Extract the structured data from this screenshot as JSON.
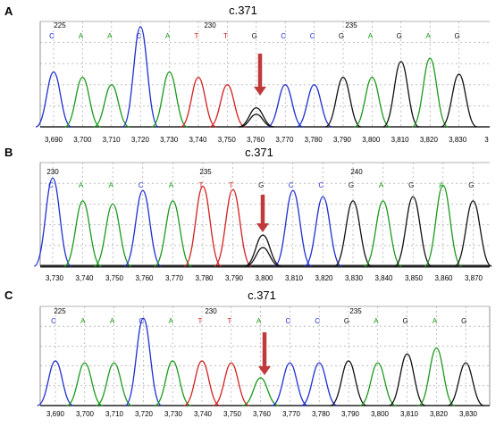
{
  "colors": {
    "A": "#1a9a1a",
    "C": "#1f2fd0",
    "G": "#111111",
    "T": "#d42020",
    "arrow": "#c0393b",
    "grid": "#9a9a9a"
  },
  "panels": [
    {
      "letter": "A",
      "title": "c.371",
      "positions": [
        "225",
        "230",
        "235"
      ],
      "bases": [
        "C",
        "A",
        "A",
        "C",
        "A",
        "T",
        "T",
        "G",
        "C",
        "C",
        "G",
        "A",
        "G",
        "A",
        "G"
      ],
      "axis": [
        "3,690",
        "3,700",
        "3,710",
        "3,720",
        "3,730",
        "3,740",
        "3,750",
        "3,760",
        "3,770",
        "3,780",
        "3,790",
        "3,800",
        "3,810",
        "3,820",
        "3,830",
        "3"
      ],
      "peak_heights": [
        0.52,
        0.47,
        0.4,
        0.95,
        0.52,
        0.47,
        0.4,
        0.18,
        0.4,
        0.4,
        0.47,
        0.47,
        0.62,
        0.65,
        0.5
      ],
      "secondary_peak": {
        "base": "G",
        "index": 7,
        "height": 0.12
      }
    },
    {
      "letter": "B",
      "title": "c.371",
      "positions": [
        "230",
        "235",
        "240"
      ],
      "bases": [
        "C",
        "A",
        "A",
        "C",
        "A",
        "T",
        "T",
        "G",
        "C",
        "C",
        "G",
        "A",
        "G",
        "A",
        "G"
      ],
      "axis": [
        "3,730",
        "3,740",
        "3,750",
        "3,760",
        "3,770",
        "3,780",
        "3,790",
        "3,800",
        "3,810",
        "3,820",
        "3,830",
        "3,840",
        "3,850",
        "3,860",
        "3,870"
      ],
      "peak_heights": [
        0.85,
        0.63,
        0.6,
        0.73,
        0.63,
        0.77,
        0.74,
        0.3,
        0.73,
        0.67,
        0.63,
        0.63,
        0.67,
        0.78,
        0.63
      ],
      "secondary_peak": {
        "base": "G",
        "index": 7,
        "height": 0.18
      }
    },
    {
      "letter": "C",
      "title": "c.371",
      "positions": [
        "225",
        "230",
        "235"
      ],
      "bases": [
        "C",
        "A",
        "A",
        "C",
        "A",
        "T",
        "T",
        "A",
        "C",
        "C",
        "G",
        "A",
        "G",
        "A",
        "G"
      ],
      "axis": [
        "3,690",
        "3,700",
        "3,710",
        "3,720",
        "3,730",
        "3,740",
        "3,750",
        "3,760",
        "3,770",
        "3,780",
        "3,790",
        "3,800",
        "3,810",
        "3,820",
        "3,830"
      ],
      "peak_heights": [
        0.45,
        0.43,
        0.43,
        0.88,
        0.45,
        0.45,
        0.43,
        0.28,
        0.43,
        0.43,
        0.45,
        0.43,
        0.52,
        0.58,
        0.43
      ],
      "secondary_peak": null
    }
  ]
}
